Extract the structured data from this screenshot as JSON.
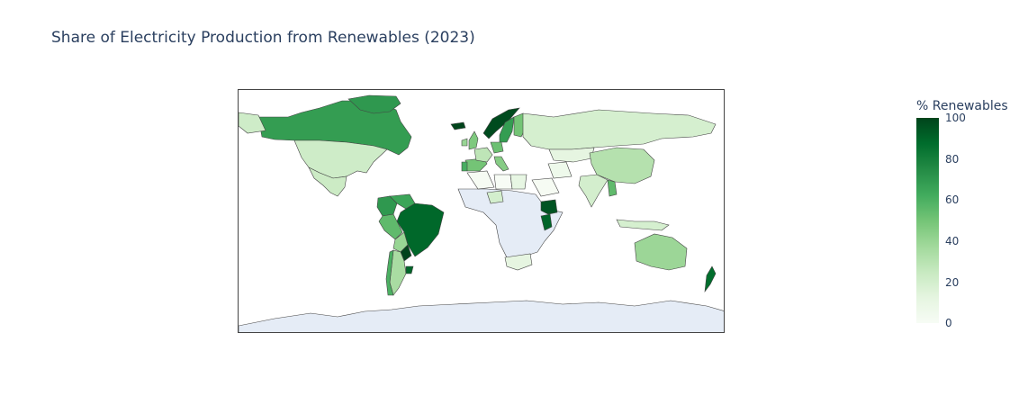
{
  "title": "Share of Electricity Production from Renewables (2023)",
  "colorbar": {
    "title": "% Renewables",
    "ticks": [
      "100",
      "80",
      "60",
      "40",
      "20",
      "0"
    ],
    "range": [
      0,
      100
    ],
    "colorscale": [
      "#f7fcf5",
      "#e5f5e0",
      "#c7e9c0",
      "#a1d99b",
      "#74c476",
      "#41ab5d",
      "#238b45",
      "#006d2c",
      "#00441b"
    ]
  },
  "map": {
    "projection": "equirectangular",
    "no_data_color": "#e5ecf6",
    "land_border_color": "#444444",
    "regions": [
      {
        "name": "Canada",
        "value": 68
      },
      {
        "name": "United States",
        "value": 22
      },
      {
        "name": "Greenland",
        "value": 70
      },
      {
        "name": "Mexico",
        "value": 23
      },
      {
        "name": "Colombia",
        "value": 70
      },
      {
        "name": "Venezuela",
        "value": 65
      },
      {
        "name": "Brazil",
        "value": 89
      },
      {
        "name": "Peru",
        "value": 55
      },
      {
        "name": "Bolivia",
        "value": 40
      },
      {
        "name": "Paraguay",
        "value": 100
      },
      {
        "name": "Argentina",
        "value": 35
      },
      {
        "name": "Chile",
        "value": 60
      },
      {
        "name": "Uruguay",
        "value": 90
      },
      {
        "name": "Iceland",
        "value": 100
      },
      {
        "name": "Norway",
        "value": 98
      },
      {
        "name": "Sweden",
        "value": 68
      },
      {
        "name": "Finland",
        "value": 50
      },
      {
        "name": "United Kingdom",
        "value": 47
      },
      {
        "name": "Ireland",
        "value": 40
      },
      {
        "name": "Spain",
        "value": 50
      },
      {
        "name": "Portugal",
        "value": 61
      },
      {
        "name": "France",
        "value": 28
      },
      {
        "name": "Germany",
        "value": 52
      },
      {
        "name": "Italy",
        "value": 45
      },
      {
        "name": "Russia",
        "value": 19
      },
      {
        "name": "Kazakhstan",
        "value": 12
      },
      {
        "name": "China",
        "value": 31
      },
      {
        "name": "India",
        "value": 20
      },
      {
        "name": "Myanmar",
        "value": 55
      },
      {
        "name": "Indonesia",
        "value": 19
      },
      {
        "name": "Australia",
        "value": 39
      },
      {
        "name": "New Zealand",
        "value": 87
      },
      {
        "name": "Kenya",
        "value": 90
      },
      {
        "name": "Ethiopia",
        "value": 95
      },
      {
        "name": "Nigeria",
        "value": 20
      },
      {
        "name": "South Africa",
        "value": 12
      },
      {
        "name": "Algeria",
        "value": 1
      },
      {
        "name": "Libya",
        "value": 0
      },
      {
        "name": "Egypt",
        "value": 11
      },
      {
        "name": "Saudi Arabia",
        "value": 1
      },
      {
        "name": "Iran",
        "value": 6
      },
      {
        "name": "Africa (other)",
        "value": null
      },
      {
        "name": "Antarctica",
        "value": null
      }
    ]
  }
}
